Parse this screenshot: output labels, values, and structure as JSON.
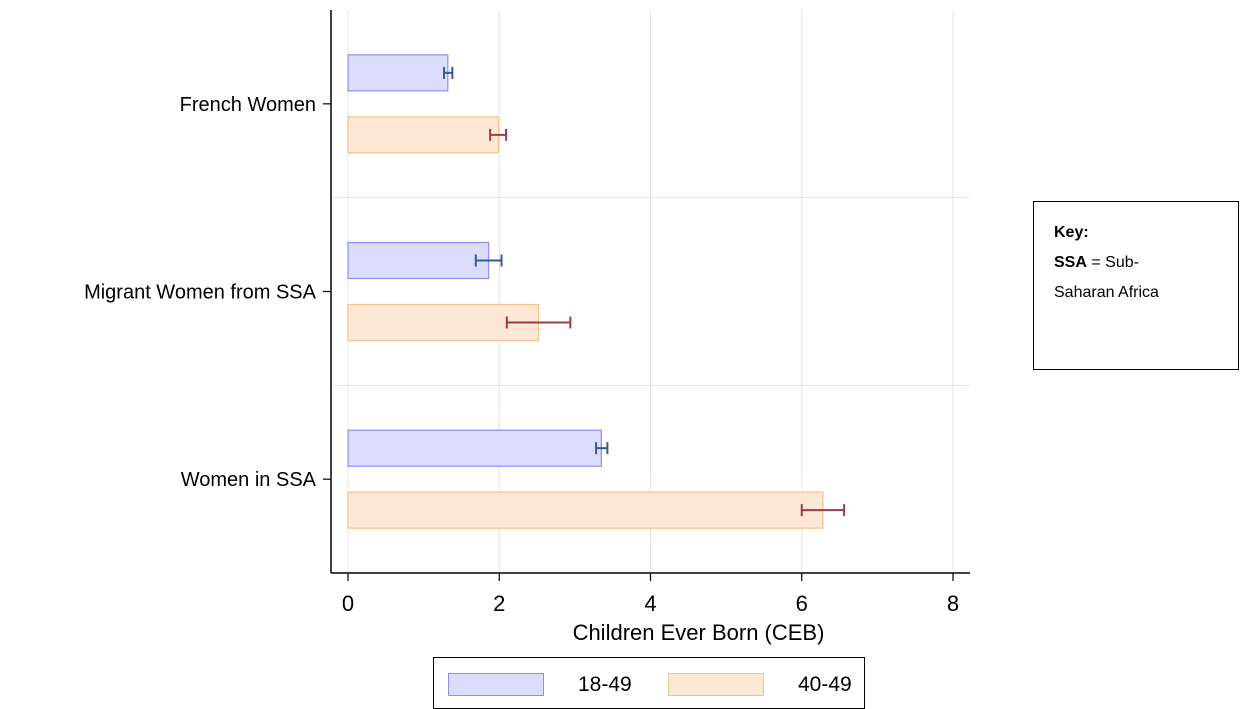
{
  "chart_data": {
    "type": "bar",
    "orientation": "horizontal",
    "categories": [
      "French Women",
      "Migrant Women from SSA",
      "Women in SSA"
    ],
    "series": [
      {
        "name": "18-49",
        "values": [
          1.32,
          1.86,
          3.35
        ],
        "ci_low": [
          1.27,
          1.69,
          3.28
        ],
        "ci_high": [
          1.38,
          2.03,
          3.43
        ],
        "fill": "#dcdcfd",
        "stroke": "#8e8ef5",
        "error_color": "#3a5a8c"
      },
      {
        "name": "40-49",
        "values": [
          1.99,
          2.52,
          6.28
        ],
        "ci_low": [
          1.88,
          2.1,
          6.0
        ],
        "ci_high": [
          2.09,
          2.94,
          6.56
        ],
        "fill": "#fde8d5",
        "stroke": "#f3c28f",
        "error_color": "#9b3a4a"
      }
    ],
    "xlabel": "Children Ever Born (CEB)",
    "ylabel": "",
    "xlim": [
      0,
      8
    ],
    "xticks": [
      0,
      2,
      4,
      6,
      8
    ],
    "grid": true,
    "legend_position": "bottom"
  },
  "key": {
    "title": "Key:",
    "abbr": "SSA",
    "definition_line1": " = Sub-",
    "definition_line2": "Saharan Africa"
  }
}
